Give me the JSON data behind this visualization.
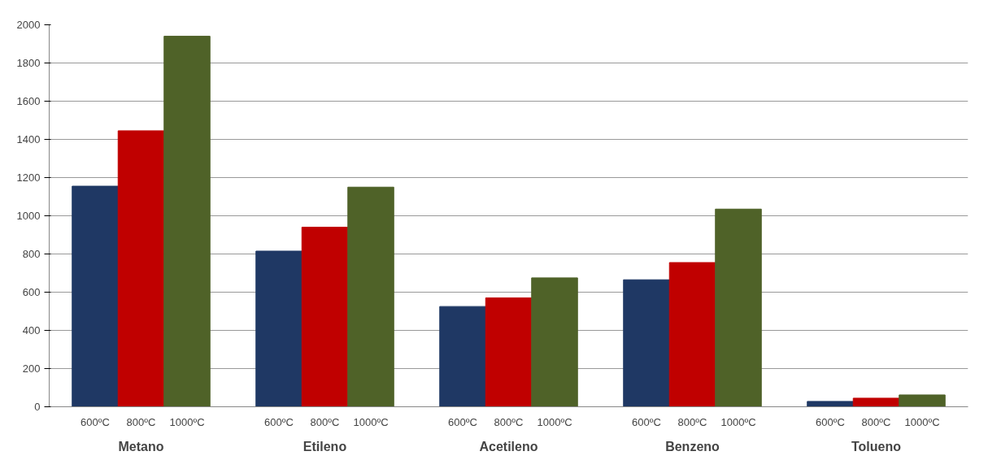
{
  "chart_data": {
    "type": "bar",
    "categories": [
      "Metano",
      "Etileno",
      "Acetileno",
      "Benzeno",
      "Tolueno"
    ],
    "series": [
      {
        "name": "600ºC",
        "color": "#1f3864",
        "values": [
          1155,
          815,
          525,
          665,
          28
        ]
      },
      {
        "name": "800ºC",
        "color": "#c00000",
        "values": [
          1445,
          940,
          570,
          755,
          45
        ]
      },
      {
        "name": "1000ºC",
        "color": "#4f6228",
        "values": [
          1940,
          1150,
          675,
          1035,
          62
        ]
      }
    ],
    "ylim": [
      0,
      2000
    ],
    "yticks": [
      0,
      200,
      400,
      600,
      800,
      1000,
      1200,
      1400,
      1600,
      1800,
      2000
    ],
    "grid": "y"
  }
}
